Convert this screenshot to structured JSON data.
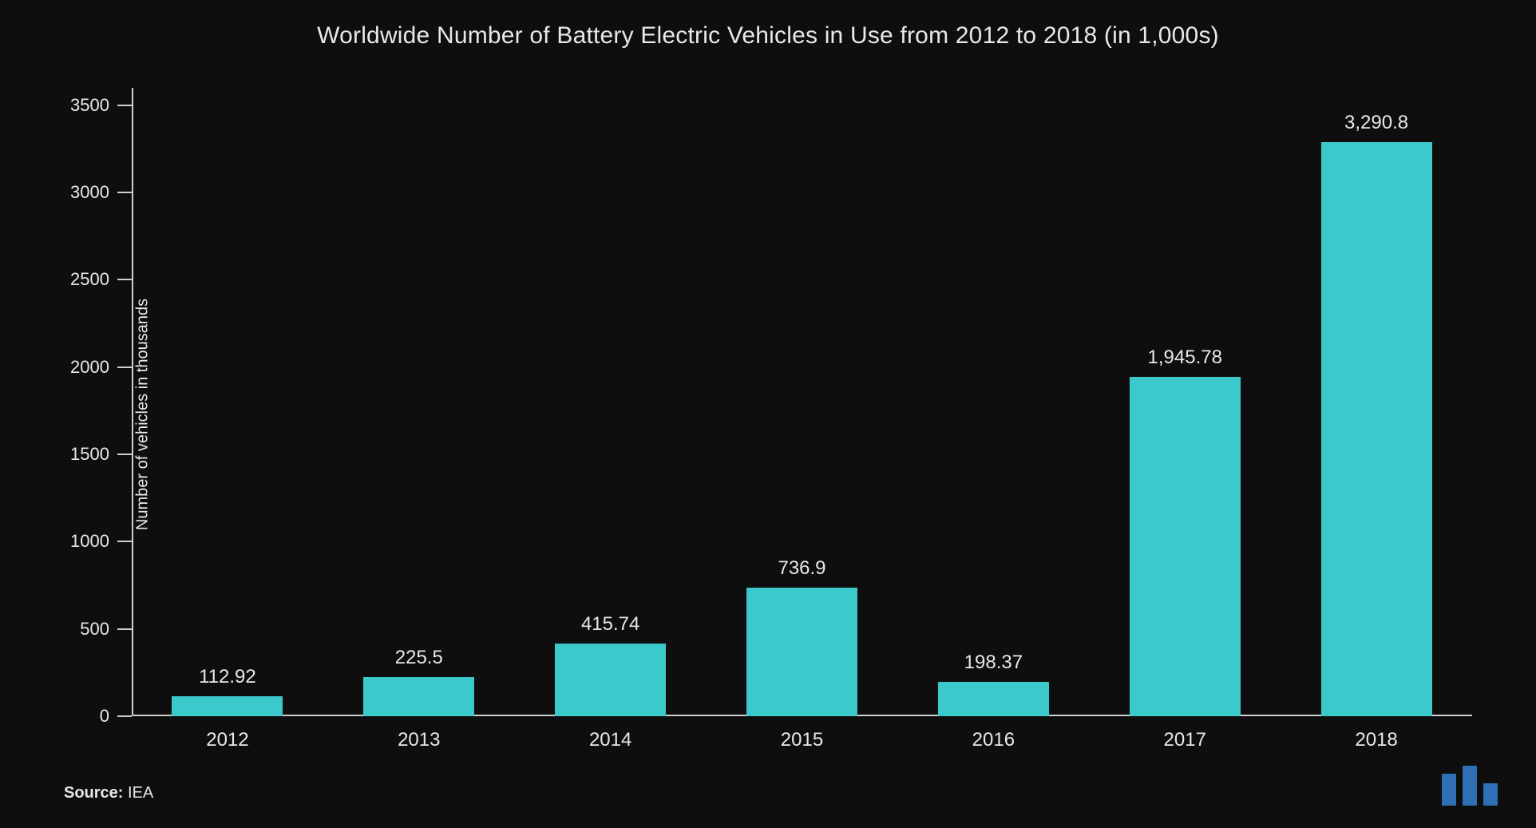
{
  "chart": {
    "type": "bar",
    "title": "Worldwide Number of Battery Electric Vehicles in Use from 2012 to 2018 (in 1,000s)",
    "title_fontsize": 30,
    "title_color": "#e8e8e8",
    "background_color": "#0e0e0e",
    "bar_color": "#3cc9cc",
    "axis_line_color": "#cfcfcf",
    "text_color": "#e8e8e8",
    "categories": [
      "2012",
      "2013",
      "2014",
      "2015",
      "2016",
      "2017",
      "2018"
    ],
    "values": [
      112.92,
      225.5,
      415.74,
      736.9,
      198.37,
      1945.78,
      3290.8
    ],
    "value_labels": [
      "112.92",
      "225.5",
      "415.74",
      "736.9",
      "198.37",
      "1,945.78",
      "3,290.8"
    ],
    "value_label_fontsize": 24,
    "x_tick_fontsize": 24,
    "y_tick_fontsize": 22,
    "y_axis_title": "Number of vehicles in thousands",
    "y_axis_title_fontsize": 20,
    "ylim": [
      0,
      3600
    ],
    "ytick_step": 500,
    "yticks": [
      0,
      500,
      1000,
      1500,
      2000,
      2500,
      3000,
      3500
    ],
    "bar_width_ratio": 0.58,
    "grid": false
  },
  "source": {
    "label": "Source:",
    "value": "IEA",
    "fontsize": 20
  },
  "logo": {
    "color": "#2f6fb3"
  }
}
